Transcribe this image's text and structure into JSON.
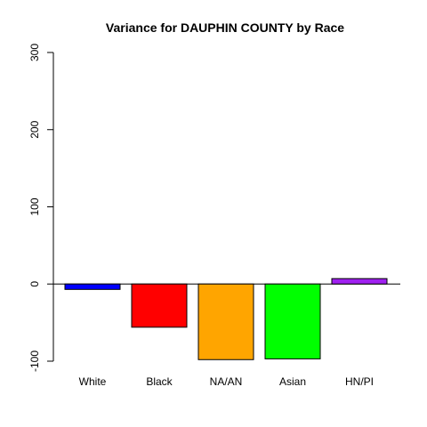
{
  "chart_data": {
    "type": "bar",
    "title": "Variance for DAUPHIN COUNTY by Race",
    "xlabel": "",
    "ylabel": "",
    "categories": [
      "White",
      "Black",
      "NA/AN",
      "Asian",
      "HN/PI"
    ],
    "values": [
      -7,
      -56,
      -98,
      -97,
      7
    ],
    "colors": [
      "#0000FF",
      "#FF0000",
      "#FFA500",
      "#00FF00",
      "#A020F0"
    ],
    "ylim": [
      -100,
      300
    ],
    "yticks": [
      -100,
      0,
      100,
      200,
      300
    ],
    "grid": false,
    "zero_line": true
  }
}
